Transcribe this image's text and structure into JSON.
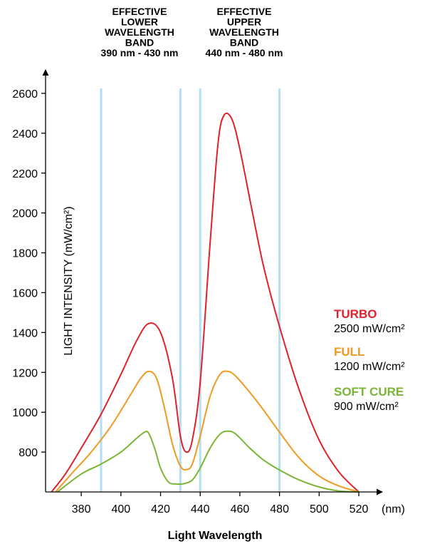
{
  "chart_data": {
    "type": "line",
    "xlabel": "Light Wavelength",
    "ylabel": "LIGHT INTENSITY (mW/cm²)",
    "x_unit": "(nm)",
    "xlim": [
      362,
      520
    ],
    "ylim": [
      600,
      2600
    ],
    "x_ticks": [
      380,
      400,
      420,
      440,
      460,
      480,
      500,
      520
    ],
    "y_ticks": [
      800,
      1000,
      1200,
      1400,
      1600,
      1800,
      2000,
      2200,
      2400,
      2600
    ],
    "grid": false,
    "legend_placement": "right",
    "bands": [
      {
        "title_lines": [
          "EFFECTIVE",
          "LOWER",
          "WAVELENGTH",
          "BAND",
          "390 nm - 430 nm"
        ],
        "range": [
          390,
          430
        ]
      },
      {
        "title_lines": [
          "EFFECTIVE",
          "UPPER",
          "WAVELENGTH",
          "BAND",
          "440 nm - 480 nm"
        ],
        "range": [
          440,
          480
        ]
      }
    ],
    "band_color": "#b3dff2",
    "series": [
      {
        "name": "TURBO",
        "value_label": "2500 mW/cm²",
        "color": "#e0212b",
        "x": [
          365,
          372,
          380,
          390,
          400,
          408,
          414,
          420,
          426,
          430,
          433,
          436,
          440,
          445,
          449,
          452,
          456,
          460,
          466,
          472,
          480,
          490,
          500,
          510,
          520
        ],
        "y": [
          600,
          690,
          820,
          990,
          1190,
          1360,
          1445,
          1400,
          1170,
          880,
          800,
          860,
          1150,
          1850,
          2350,
          2490,
          2470,
          2320,
          2020,
          1730,
          1430,
          1110,
          860,
          700,
          600
        ]
      },
      {
        "name": "FULL",
        "value_label": "1200 mW/cm²",
        "color": "#f09a22",
        "x": [
          367,
          375,
          385,
          395,
          405,
          410,
          414,
          418,
          422,
          426,
          430,
          433,
          436,
          440,
          445,
          450,
          454,
          458,
          465,
          472,
          480,
          490,
          500,
          510,
          520
        ],
        "y": [
          600,
          690,
          800,
          930,
          1090,
          1170,
          1205,
          1170,
          1020,
          840,
          730,
          712,
          740,
          880,
          1080,
          1190,
          1205,
          1180,
          1100,
          1010,
          900,
          770,
          680,
          630,
          600
        ]
      },
      {
        "name": "SOFT CURE",
        "value_label": "900 mW/cm²",
        "color": "#7ab536",
        "x": [
          368,
          380,
          390,
          400,
          408,
          412,
          414,
          417,
          420,
          424,
          428,
          432,
          436,
          440,
          445,
          450,
          454,
          458,
          465,
          472,
          480,
          490,
          500,
          510,
          520
        ],
        "y": [
          600,
          690,
          740,
          800,
          870,
          900,
          895,
          820,
          720,
          650,
          640,
          642,
          660,
          720,
          820,
          890,
          905,
          890,
          820,
          760,
          710,
          660,
          625,
          605,
          600
        ]
      }
    ]
  }
}
